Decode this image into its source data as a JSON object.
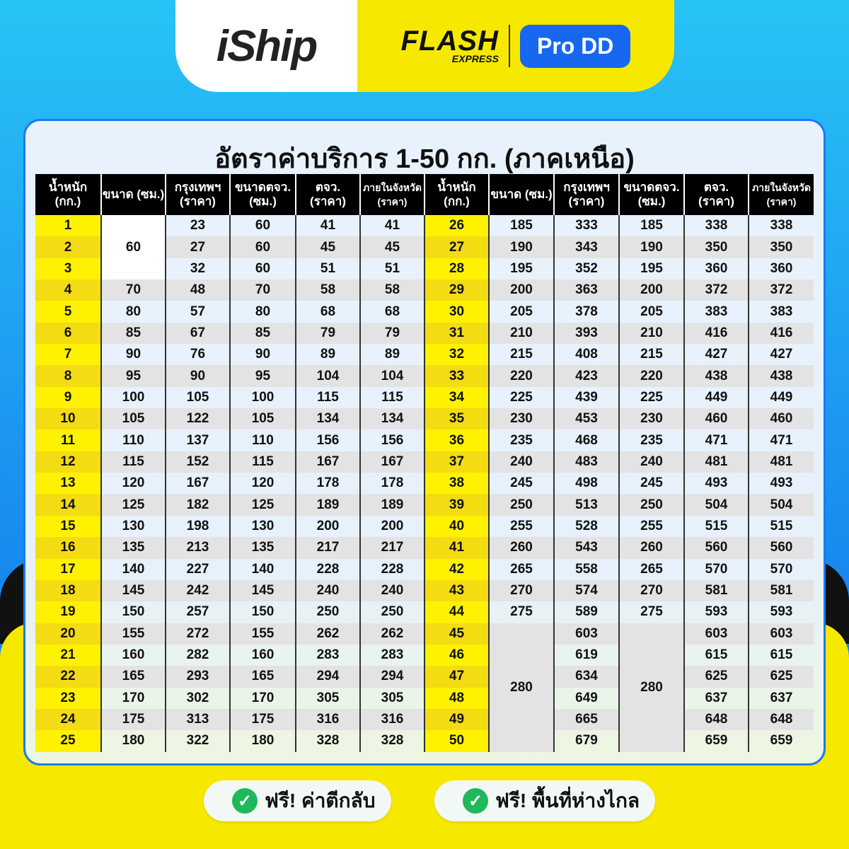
{
  "brand": {
    "iship": "iShip",
    "flash_line1": "FLASH",
    "flash_line2": "EXPRESS",
    "badge": "Pro DD"
  },
  "title": "อัตราค่าบริการ 1-50 กก. (ภาคเหนือ)",
  "headers": [
    "น้ำหนัก (กก.)",
    "ขนาด (ซม.)",
    "กรุงเทพฯ (ราคา)",
    "ขนาดตจว. (ซม.)",
    "ตจว. (ราคา)",
    "ภายในจังหวัด (ราคา)"
  ],
  "left_rows": [
    [
      "1",
      "60",
      "23",
      "60",
      "41",
      "41"
    ],
    [
      "2",
      null,
      "27",
      "60",
      "45",
      "45"
    ],
    [
      "3",
      null,
      "32",
      "60",
      "51",
      "51"
    ],
    [
      "4",
      "70",
      "48",
      "70",
      "58",
      "58"
    ],
    [
      "5",
      "80",
      "57",
      "80",
      "68",
      "68"
    ],
    [
      "6",
      "85",
      "67",
      "85",
      "79",
      "79"
    ],
    [
      "7",
      "90",
      "76",
      "90",
      "89",
      "89"
    ],
    [
      "8",
      "95",
      "90",
      "95",
      "104",
      "104"
    ],
    [
      "9",
      "100",
      "105",
      "100",
      "115",
      "115"
    ],
    [
      "10",
      "105",
      "122",
      "105",
      "134",
      "134"
    ],
    [
      "11",
      "110",
      "137",
      "110",
      "156",
      "156"
    ],
    [
      "12",
      "115",
      "152",
      "115",
      "167",
      "167"
    ],
    [
      "13",
      "120",
      "167",
      "120",
      "178",
      "178"
    ],
    [
      "14",
      "125",
      "182",
      "125",
      "189",
      "189"
    ],
    [
      "15",
      "130",
      "198",
      "130",
      "200",
      "200"
    ],
    [
      "16",
      "135",
      "213",
      "135",
      "217",
      "217"
    ],
    [
      "17",
      "140",
      "227",
      "140",
      "228",
      "228"
    ],
    [
      "18",
      "145",
      "242",
      "145",
      "240",
      "240"
    ],
    [
      "19",
      "150",
      "257",
      "150",
      "250",
      "250"
    ],
    [
      "20",
      "155",
      "272",
      "155",
      "262",
      "262"
    ],
    [
      "21",
      "160",
      "282",
      "160",
      "283",
      "283"
    ],
    [
      "22",
      "165",
      "293",
      "165",
      "294",
      "294"
    ],
    [
      "23",
      "170",
      "302",
      "170",
      "305",
      "305"
    ],
    [
      "24",
      "175",
      "313",
      "175",
      "316",
      "316"
    ],
    [
      "25",
      "180",
      "322",
      "180",
      "328",
      "328"
    ]
  ],
  "right_rows": [
    [
      "26",
      "185",
      "333",
      "185",
      "338",
      "338"
    ],
    [
      "27",
      "190",
      "343",
      "190",
      "350",
      "350"
    ],
    [
      "28",
      "195",
      "352",
      "195",
      "360",
      "360"
    ],
    [
      "29",
      "200",
      "363",
      "200",
      "372",
      "372"
    ],
    [
      "30",
      "205",
      "378",
      "205",
      "383",
      "383"
    ],
    [
      "31",
      "210",
      "393",
      "210",
      "416",
      "416"
    ],
    [
      "32",
      "215",
      "408",
      "215",
      "427",
      "427"
    ],
    [
      "33",
      "220",
      "423",
      "220",
      "438",
      "438"
    ],
    [
      "34",
      "225",
      "439",
      "225",
      "449",
      "449"
    ],
    [
      "35",
      "230",
      "453",
      "230",
      "460",
      "460"
    ],
    [
      "36",
      "235",
      "468",
      "235",
      "471",
      "471"
    ],
    [
      "37",
      "240",
      "483",
      "240",
      "481",
      "481"
    ],
    [
      "38",
      "245",
      "498",
      "245",
      "493",
      "493"
    ],
    [
      "39",
      "250",
      "513",
      "250",
      "504",
      "504"
    ],
    [
      "40",
      "255",
      "528",
      "255",
      "515",
      "515"
    ],
    [
      "41",
      "260",
      "543",
      "260",
      "560",
      "560"
    ],
    [
      "42",
      "265",
      "558",
      "265",
      "570",
      "570"
    ],
    [
      "43",
      "270",
      "574",
      "270",
      "581",
      "581"
    ],
    [
      "44",
      "275",
      "589",
      "275",
      "593",
      "593"
    ],
    [
      "45",
      "280",
      "603",
      "280",
      "603",
      "603"
    ],
    [
      "46",
      null,
      "619",
      null,
      "615",
      "615"
    ],
    [
      "47",
      null,
      "634",
      null,
      "625",
      "625"
    ],
    [
      "48",
      null,
      "649",
      null,
      "637",
      "637"
    ],
    [
      "49",
      null,
      "665",
      null,
      "648",
      "648"
    ],
    [
      "50",
      null,
      "679",
      null,
      "659",
      "659"
    ]
  ],
  "badges": [
    "ฟรี! ค่าตีกลับ",
    "ฟรี! พื้นที่ห่างไกล"
  ],
  "colors": {
    "accent_blue": "#1767f0",
    "flash_yellow": "#f7e800",
    "check_green": "#1fb85a"
  }
}
